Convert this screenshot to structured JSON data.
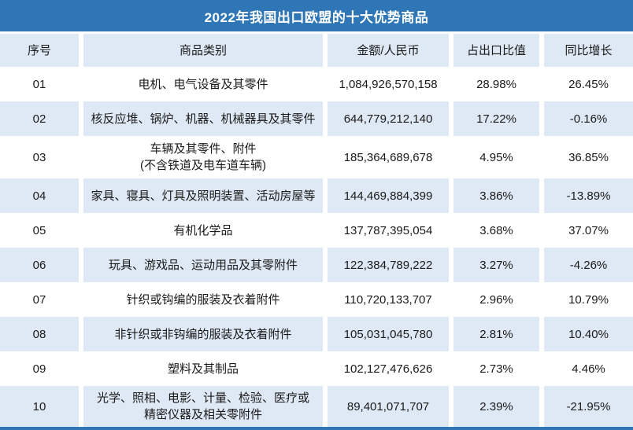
{
  "colors": {
    "title_bg": "#2E76B6",
    "title_text": "#FFFFFF",
    "row_alt_bg": "#DEE9F5",
    "row_bg": "#FFFFFF",
    "text": "#1A1A1A",
    "bottom_border": "#2E76B6"
  },
  "chart_data": {
    "type": "table",
    "title": "2022年我国出口欧盟的十大优势商品",
    "columns": [
      "序号",
      "商品类别",
      "金额/人民币",
      "占出口比值",
      "同比增长"
    ],
    "rows": [
      {
        "no": "01",
        "category": "电机、电气设备及其零件",
        "amount_cny": "1,084,926,570,158",
        "export_share": "28.98%",
        "yoy_growth": "26.45%"
      },
      {
        "no": "02",
        "category": "核反应堆、锅炉、机器、机械器具及其零件",
        "amount_cny": "644,779,212,140",
        "export_share": "17.22%",
        "yoy_growth": "-0.16%"
      },
      {
        "no": "03",
        "category": "车辆及其零件、附件\n(不含铁道及电车道车辆)",
        "amount_cny": "185,364,689,678",
        "export_share": "4.95%",
        "yoy_growth": "36.85%"
      },
      {
        "no": "04",
        "category": "家具、寝具、灯具及照明装置、活动房屋等",
        "amount_cny": "144,469,884,399",
        "export_share": "3.86%",
        "yoy_growth": "-13.89%"
      },
      {
        "no": "05",
        "category": "有机化学品",
        "amount_cny": "137,787,395,054",
        "export_share": "3.68%",
        "yoy_growth": "37.07%"
      },
      {
        "no": "06",
        "category": "玩具、游戏品、运动用品及其零附件",
        "amount_cny": "122,384,789,222",
        "export_share": "3.27%",
        "yoy_growth": "-4.26%"
      },
      {
        "no": "07",
        "category": "针织或钩编的服装及衣着附件",
        "amount_cny": "110,720,133,707",
        "export_share": "2.96%",
        "yoy_growth": "10.79%"
      },
      {
        "no": "08",
        "category": "非针织或非钩编的服装及衣着附件",
        "amount_cny": "105,031,045,780",
        "export_share": "2.81%",
        "yoy_growth": "10.40%"
      },
      {
        "no": "09",
        "category": "塑料及其制品",
        "amount_cny": "102,127,476,626",
        "export_share": "2.73%",
        "yoy_growth": "4.46%"
      },
      {
        "no": "10",
        "category": "光学、照相、电影、计量、检验、医疗或\n精密仪器及相关零附件",
        "amount_cny": "89,401,071,707",
        "export_share": "2.39%",
        "yoy_growth": "-21.95%"
      }
    ]
  }
}
